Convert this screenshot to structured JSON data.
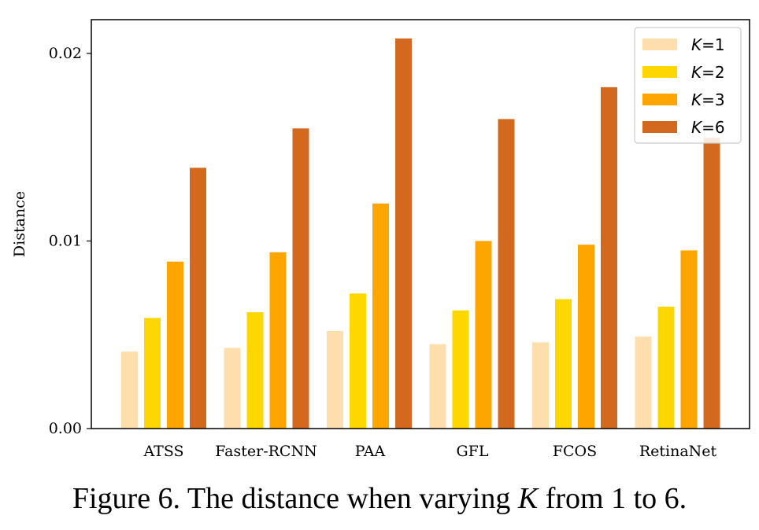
{
  "caption": {
    "prefix": "Figure 6. The distance when varying ",
    "variable": "K",
    "suffix": " from 1 to 6."
  },
  "chart_data": {
    "type": "bar",
    "categories": [
      "ATSS",
      "Faster-RCNN",
      "PAA",
      "GFL",
      "FCOS",
      "RetinaNet"
    ],
    "series": [
      {
        "name": "K=1",
        "legend_var": "K",
        "legend_rest": "=1",
        "color": "#FFDEAD",
        "values": [
          0.0041,
          0.0043,
          0.0052,
          0.0045,
          0.0046,
          0.0049
        ]
      },
      {
        "name": "K=2",
        "legend_var": "K",
        "legend_rest": "=2",
        "color": "#FFD700",
        "values": [
          0.0059,
          0.0062,
          0.0072,
          0.0063,
          0.0069,
          0.0065
        ]
      },
      {
        "name": "K=3",
        "legend_var": "K",
        "legend_rest": "=3",
        "color": "#FFA500",
        "values": [
          0.0089,
          0.0094,
          0.012,
          0.01,
          0.0098,
          0.0095
        ]
      },
      {
        "name": "K=6",
        "legend_var": "K",
        "legend_rest": "=6",
        "color": "#D2691E",
        "values": [
          0.0139,
          0.016,
          0.0208,
          0.0165,
          0.0182,
          0.0155
        ]
      }
    ],
    "xlabel": "",
    "ylabel": "Distance",
    "ylim": [
      0,
      0.0218
    ],
    "yticks": [
      0,
      0.01,
      0.02
    ],
    "ytick_labels": [
      "0.00",
      "0.01",
      "0.02"
    ],
    "grid": false,
    "legend_position": "top-right"
  }
}
